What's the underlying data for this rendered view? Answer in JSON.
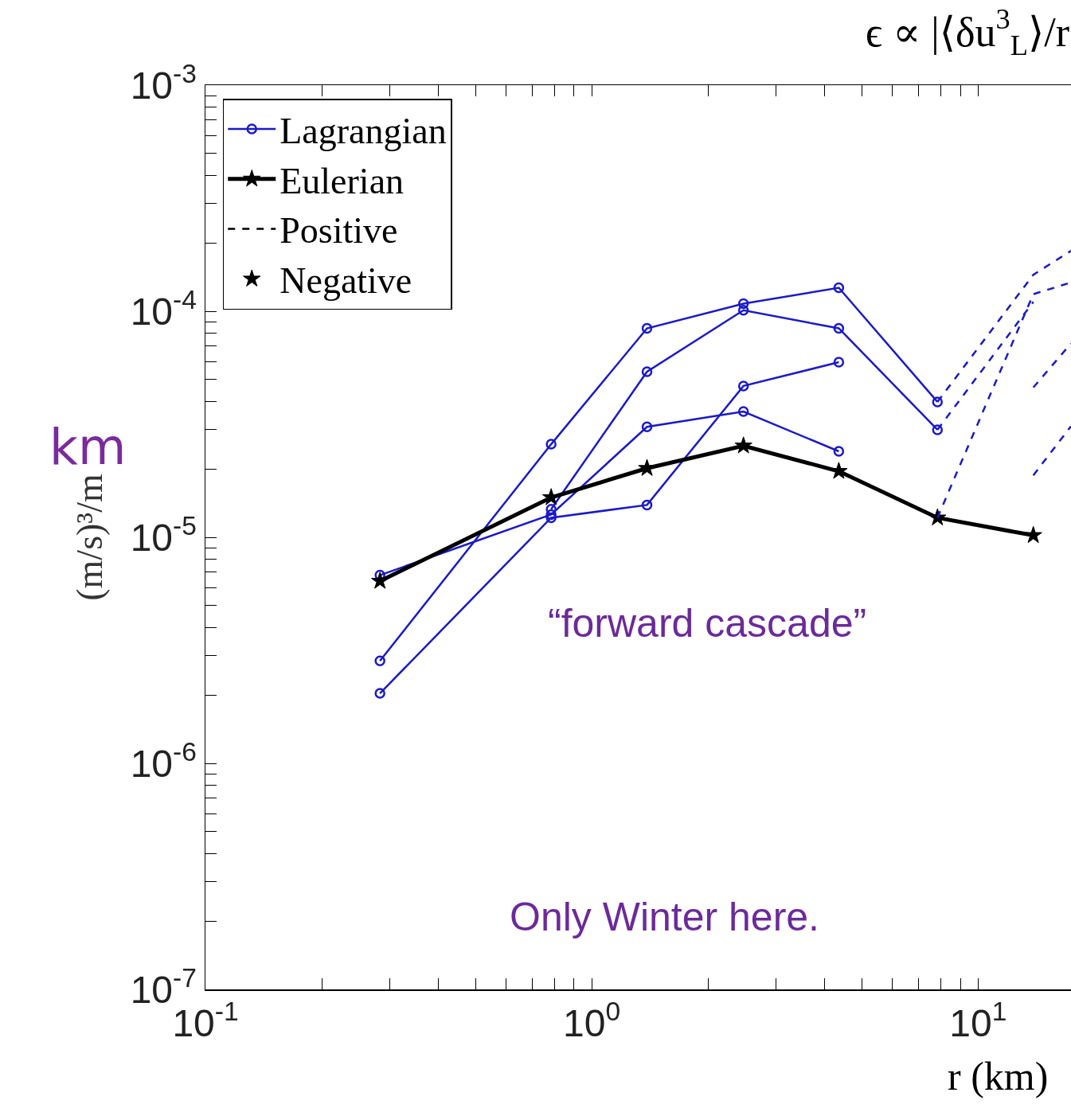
{
  "chart_data": {
    "type": "line",
    "title": "ϵ ∝ |⟨δu$^{3}$$_{L}$⟩/r",
    "xlabel": "r (km)",
    "ylabel": "(m/s)³/m",
    "annotations": [
      "km",
      "“forward cascade”",
      "Only Winter here."
    ],
    "log": "xy",
    "xlim": [
      0.1,
      17.4
    ],
    "ylim": [
      1e-07,
      0.001
    ],
    "xticks": [
      {
        "value": 0.1,
        "label": "10$^{-1}$"
      },
      {
        "value": 0.2,
        "label": null
      },
      {
        "value": 0.3,
        "label": null
      },
      {
        "value": 0.4,
        "label": null
      },
      {
        "value": 0.5,
        "label": null
      },
      {
        "value": 0.6,
        "label": null
      },
      {
        "value": 0.7,
        "label": null
      },
      {
        "value": 0.8,
        "label": null
      },
      {
        "value": 0.9,
        "label": null
      },
      {
        "value": 1,
        "label": "10$^{0}$"
      },
      {
        "value": 2,
        "label": null
      },
      {
        "value": 3,
        "label": null
      },
      {
        "value": 4,
        "label": null
      },
      {
        "value": 5,
        "label": null
      },
      {
        "value": 6,
        "label": null
      },
      {
        "value": 7,
        "label": null
      },
      {
        "value": 8,
        "label": null
      },
      {
        "value": 9,
        "label": null
      },
      {
        "value": 10,
        "label": "10$^{1}$"
      }
    ],
    "yticks": [
      {
        "value": 1e-07,
        "label": "10$^{-7}$"
      },
      {
        "value": 2e-07,
        "label": null
      },
      {
        "value": 3e-07,
        "label": null
      },
      {
        "value": 4e-07,
        "label": null
      },
      {
        "value": 5e-07,
        "label": null
      },
      {
        "value": 6e-07,
        "label": null
      },
      {
        "value": 7e-07,
        "label": null
      },
      {
        "value": 8e-07,
        "label": null
      },
      {
        "value": 9e-07,
        "label": null
      },
      {
        "value": 1e-06,
        "label": "10$^{-6}$"
      },
      {
        "value": 2e-06,
        "label": null
      },
      {
        "value": 3e-06,
        "label": null
      },
      {
        "value": 4e-06,
        "label": null
      },
      {
        "value": 5e-06,
        "label": null
      },
      {
        "value": 6e-06,
        "label": null
      },
      {
        "value": 7e-06,
        "label": null
      },
      {
        "value": 8e-06,
        "label": null
      },
      {
        "value": 9e-06,
        "label": null
      },
      {
        "value": 1e-05,
        "label": "10$^{-5}$"
      },
      {
        "value": 2e-05,
        "label": null
      },
      {
        "value": 3e-05,
        "label": null
      },
      {
        "value": 4e-05,
        "label": null
      },
      {
        "value": 5e-05,
        "label": null
      },
      {
        "value": 6e-05,
        "label": null
      },
      {
        "value": 7e-05,
        "label": null
      },
      {
        "value": 8e-05,
        "label": null
      },
      {
        "value": 9e-05,
        "label": null
      },
      {
        "value": 0.0001,
        "label": "10$^{-4}$"
      },
      {
        "value": 0.0002,
        "label": null
      },
      {
        "value": 0.0003,
        "label": null
      },
      {
        "value": 0.0004,
        "label": null
      },
      {
        "value": 0.0005,
        "label": null
      },
      {
        "value": 0.0006,
        "label": null
      },
      {
        "value": 0.0007,
        "label": null
      },
      {
        "value": 0.0008,
        "label": null
      },
      {
        "value": 0.0009,
        "label": null
      },
      {
        "value": 0.001,
        "label": "10$^{-3}$"
      }
    ],
    "grid": false,
    "legend": "top left",
    "series": [
      {
        "name": "Lagrangian",
        "color": "#1a1ac8",
        "marker": "circle",
        "x": [
          0.283,
          0.785,
          1.39,
          2.47,
          4.36,
          7.85
        ],
        "values": [
          2.84e-06,
          2.58e-05,
          8.4e-05,
          0.000108,
          0.000127,
          3.97e-05
        ]
      },
      {
        "color": "#1a1ac8",
        "marker": "circle",
        "x": [
          0.283,
          0.785,
          1.39,
          2.47,
          4.36
        ],
        "values": [
          2.04e-06,
          1.22e-05,
          1.39e-05,
          4.67e-05,
          5.95e-05
        ]
      },
      {
        "color": "#1a1ac8",
        "marker": "circle",
        "x": [
          0.283,
          0.785,
          1.39,
          2.47,
          4.36
        ],
        "values": [
          6.8e-06,
          1.26e-05,
          3.08e-05,
          3.6e-05,
          2.4e-05
        ]
      },
      {
        "color": "#1a1ac8",
        "marker": "circle",
        "x": [
          0.785,
          1.39,
          2.47,
          4.36,
          7.85
        ],
        "values": [
          1.33e-05,
          5.4e-05,
          0.000101,
          8.4e-05,
          2.99e-05
        ]
      },
      {
        "color": "#1a1ac8",
        "marker": "none",
        "line_style": "dashed",
        "x": [
          7.85,
          13.9,
          17.4
        ],
        "values": [
          3.97e-05,
          0.000145,
          0.000185
        ]
      },
      {
        "color": "#1a1ac8",
        "marker": "none",
        "line_style": "dashed",
        "x": [
          7.85,
          13.9,
          17.4
        ],
        "values": [
          1.22e-05,
          0.000119,
          0.000134
        ]
      },
      {
        "color": "#1a1ac8",
        "marker": "none",
        "line_style": "dashed",
        "x": [
          7.85,
          13.9
        ],
        "values": [
          2.99e-05,
          0.00011
        ]
      },
      {
        "color": "#1a1ac8",
        "marker": "none",
        "line_style": "dashed",
        "x": [
          13.9,
          17.4
        ],
        "values": [
          4.6e-05,
          7.2e-05
        ]
      },
      {
        "color": "#1a1ac8",
        "marker": "none",
        "line_style": "dashed",
        "x": [
          13.9,
          17.4
        ],
        "values": [
          1.88e-05,
          3.1e-05
        ]
      },
      {
        "name": "Eulerian",
        "color": "#000000",
        "marker": "star",
        "x": [
          0.283,
          0.785,
          1.39,
          2.47,
          4.36,
          7.85,
          13.9
        ],
        "values": [
          6.4e-06,
          1.5e-05,
          2.02e-05,
          2.54e-05,
          1.96e-05,
          1.22e-05,
          1.02e-05
        ]
      },
      {
        "name": "Positive",
        "color": "#000000",
        "marker": "none",
        "line_style": "dashed"
      },
      {
        "name": "Negative",
        "color": "#000000",
        "marker": "star",
        "line_style": "none"
      }
    ]
  }
}
